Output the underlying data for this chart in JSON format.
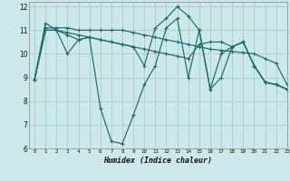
{
  "xlabel": "Humidex (Indice chaleur)",
  "background_color": "#cce8e8",
  "grid_color": "#aacccc",
  "line_color": "#1a6b6b",
  "xlim": [
    -0.5,
    23
  ],
  "ylim": [
    6,
    12.2
  ],
  "yticks": [
    6,
    7,
    8,
    9,
    10,
    11,
    12
  ],
  "xticks": [
    0,
    1,
    2,
    3,
    4,
    5,
    6,
    7,
    8,
    9,
    10,
    11,
    12,
    13,
    14,
    15,
    16,
    17,
    18,
    19,
    20,
    21,
    22,
    23
  ],
  "series": [
    [
      8.9,
      11.3,
      11.0,
      10.0,
      10.6,
      10.7,
      7.7,
      6.3,
      6.2,
      7.4,
      8.7,
      9.5,
      11.1,
      11.5,
      9.0,
      11.0,
      8.5,
      10.0,
      10.3,
      10.5,
      9.5,
      8.8,
      8.7,
      8.5
    ],
    [
      8.9,
      11.1,
      11.1,
      11.1,
      11.0,
      11.0,
      11.0,
      11.0,
      11.0,
      10.9,
      10.8,
      10.7,
      10.6,
      10.5,
      10.4,
      10.3,
      10.2,
      10.15,
      10.1,
      10.05,
      10.0,
      9.8,
      9.6,
      8.7
    ],
    [
      8.9,
      11.0,
      11.0,
      10.8,
      10.6,
      10.7,
      10.6,
      10.5,
      10.4,
      10.3,
      9.5,
      11.1,
      11.5,
      12.0,
      11.6,
      11.0,
      8.5,
      9.0,
      10.3,
      10.5,
      9.5,
      8.8,
      8.7,
      8.5
    ],
    [
      8.9,
      11.0,
      11.0,
      10.9,
      10.8,
      10.7,
      10.6,
      10.5,
      10.4,
      10.3,
      10.2,
      10.1,
      10.0,
      9.9,
      9.8,
      10.4,
      10.5,
      10.5,
      10.3,
      10.5,
      9.5,
      8.8,
      8.7,
      8.5
    ]
  ]
}
